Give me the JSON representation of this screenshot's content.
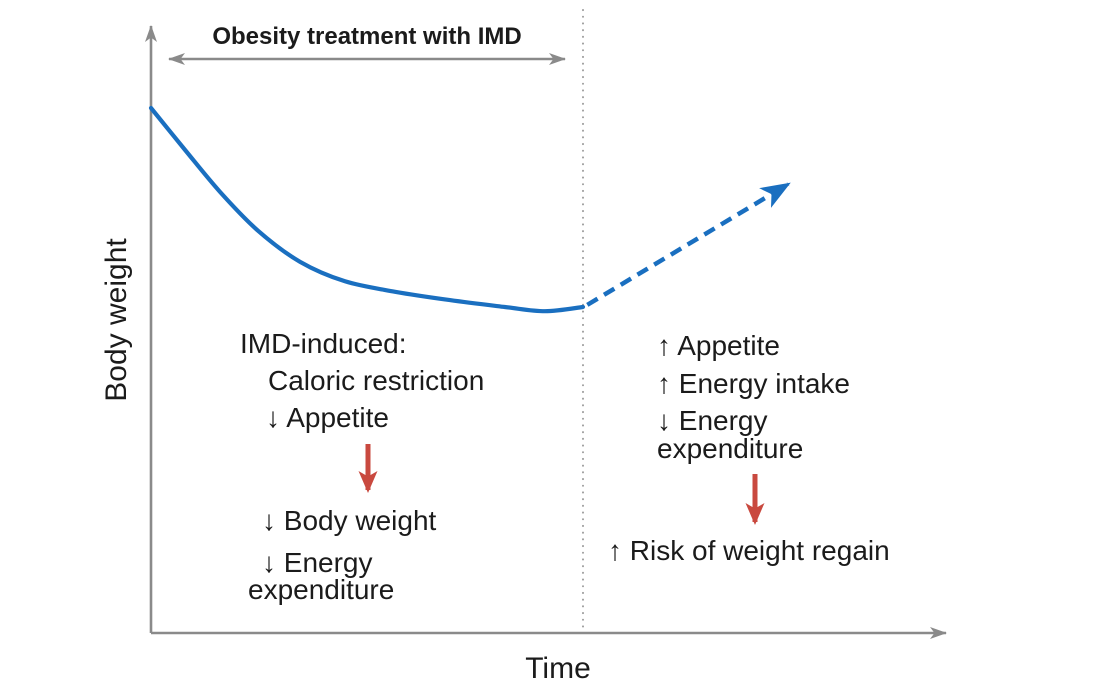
{
  "figure": {
    "treatment_span_label": "Obesity treatment with IMD",
    "y_axis_label": "Body weight",
    "x_axis_label": "Time"
  },
  "annotations": {
    "left": {
      "heading": "IMD-induced:",
      "item1": "Caloric restriction",
      "item2": "↓ Appetite",
      "outcome1": "↓ Body weight",
      "outcome2_line1": "↓ Energy",
      "outcome2_line2": "expenditure"
    },
    "right": {
      "item1": "↑ Appetite",
      "item2": "↑ Energy intake",
      "item3_line1": "↓ Energy",
      "item3_line2": "expenditure",
      "outcome": "↑ Risk of weight regain"
    }
  },
  "colors": {
    "curve_blue": "#1a6fc0",
    "arrow_red": "#c9493f",
    "axis_gray": "#8a8a8a",
    "dotted_gray": "#9c9c9c",
    "text": "#1b1b1b"
  },
  "chart_data": {
    "type": "line",
    "title": "",
    "xlabel": "Time",
    "ylabel": "Body weight",
    "grid": false,
    "axis_ticks": "none (qualitative schematic; x and y in relative units, x=1 marks end of IMD treatment, y=1 is starting body weight)",
    "regions": [
      {
        "label": "Obesity treatment with IMD",
        "x_start": 0.0,
        "x_end": 1.0
      }
    ],
    "series": [
      {
        "name": "Body weight during IMD treatment",
        "style": "solid",
        "color": "#1a6fc0",
        "x": [
          0.0,
          0.079,
          0.16,
          0.248,
          0.345,
          0.449,
          0.565,
          0.692,
          0.819,
          0.912,
          1.0
        ],
        "y": [
          1.0,
          0.92,
          0.84,
          0.766,
          0.707,
          0.67,
          0.65,
          0.634,
          0.621,
          0.613,
          0.621
        ]
      },
      {
        "name": "Projected weight regain after treatment ends",
        "style": "dashed-arrow",
        "color": "#1a6fc0",
        "x": [
          1.01,
          1.475
        ],
        "y": [
          0.625,
          0.855
        ]
      }
    ]
  }
}
